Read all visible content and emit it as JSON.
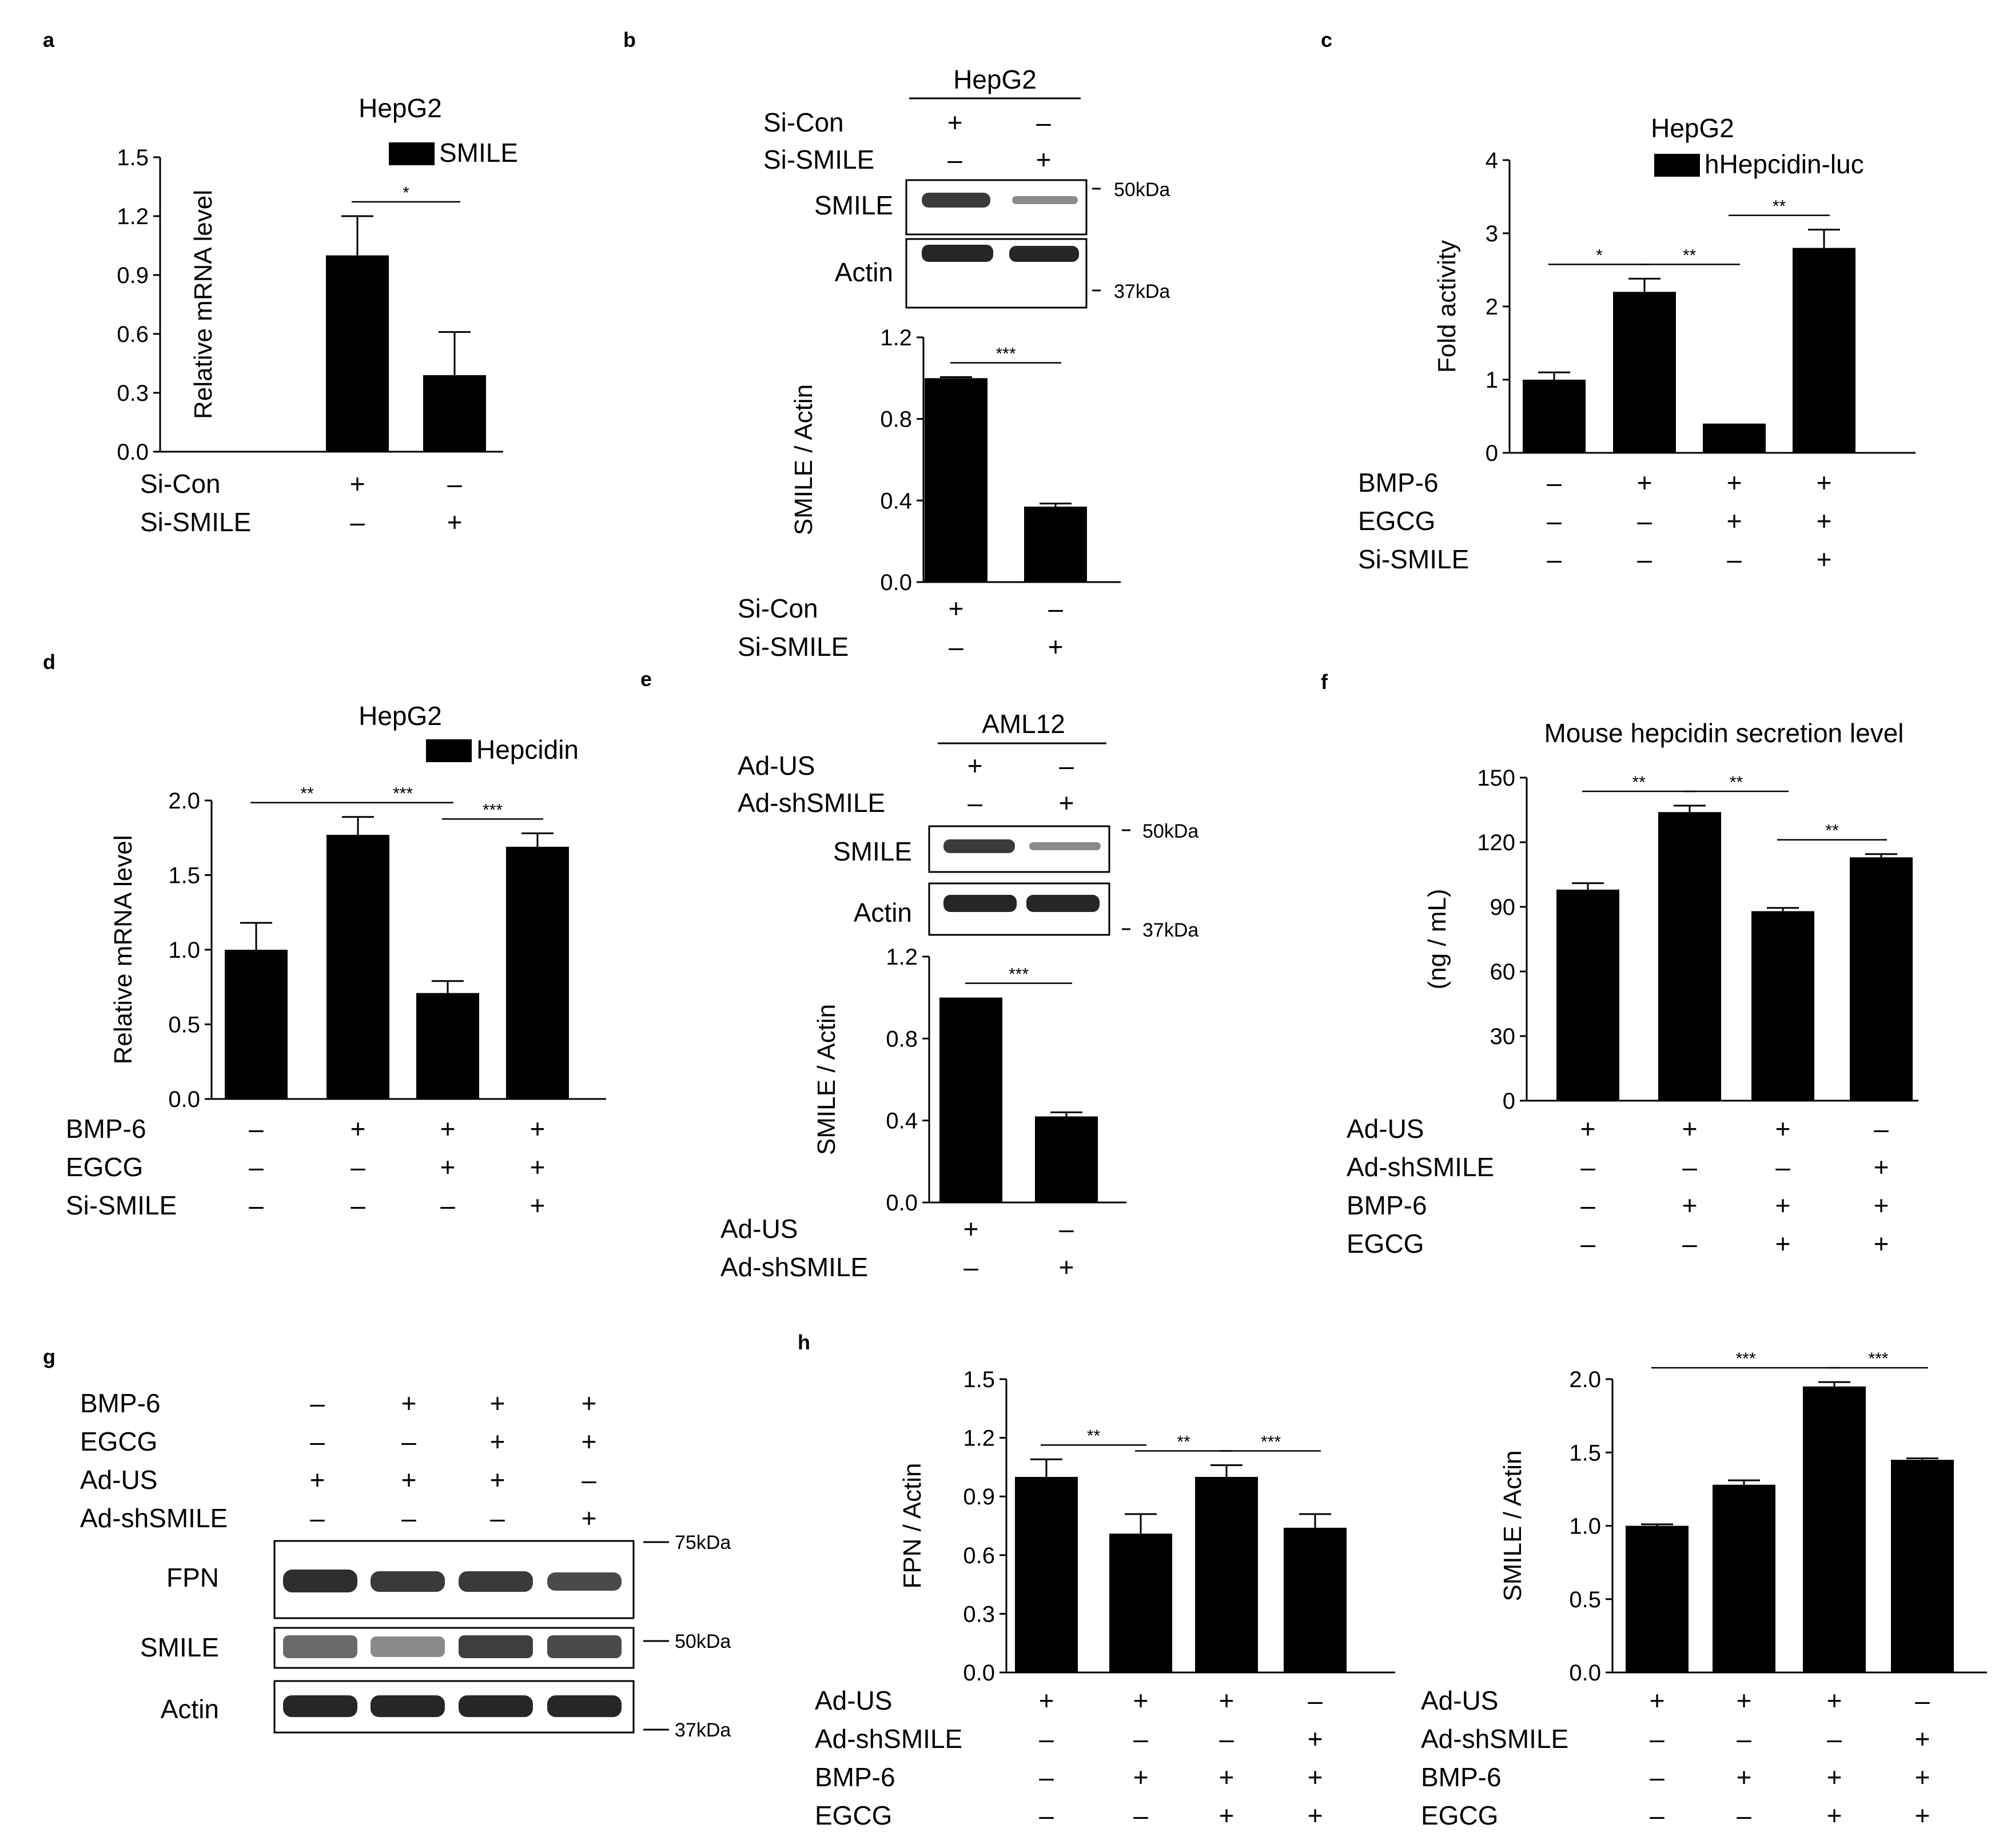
{
  "panels": [
    {
      "id": "a",
      "letter": "a",
      "title": "HepG2",
      "legend": "SMILE",
      "ylabel": "Relative mRNA level",
      "yticks": [
        "0.0",
        "0.3",
        "0.6",
        "0.9",
        "1.2",
        "1.5"
      ],
      "ylim": [
        0,
        1.5
      ],
      "rows": [
        {
          "label": "Si-Con",
          "signs": [
            "+",
            "–"
          ]
        },
        {
          "label": "Si-SMILE",
          "signs": [
            "–",
            "+"
          ]
        }
      ],
      "values": [
        1.0,
        0.39
      ],
      "errors": [
        0.2,
        0.22
      ],
      "sig": [
        {
          "from": 0,
          "to": 1,
          "text": "*"
        }
      ]
    },
    {
      "id": "b",
      "letter": "b",
      "title": "HepG2",
      "legend": "",
      "ylabel": "SMILE / Actin",
      "yticks": [
        "0.0",
        "0.4",
        "0.8",
        "1.2"
      ],
      "ylim": [
        0,
        1.2
      ],
      "rows": [
        {
          "label": "Si-Con",
          "signs": [
            "+",
            "–"
          ]
        },
        {
          "label": "Si-SMILE",
          "signs": [
            "–",
            "+"
          ]
        }
      ],
      "values": [
        1.0,
        0.37
      ],
      "errors": [
        0.005,
        0.015
      ],
      "sig": [
        {
          "from": 0,
          "to": 1,
          "text": "***"
        }
      ]
    },
    {
      "id": "c",
      "letter": "c",
      "title": "HepG2",
      "legend": "hHepcidin-luc",
      "ylabel": "Fold activity",
      "yticks": [
        "0",
        "1",
        "2",
        "3",
        "4"
      ],
      "ylim": [
        0,
        4
      ],
      "rows": [
        {
          "label": "BMP-6",
          "signs": [
            "–",
            "+",
            "+",
            "+"
          ]
        },
        {
          "label": "EGCG",
          "signs": [
            "–",
            "–",
            "+",
            "+"
          ]
        },
        {
          "label": "Si-SMILE",
          "signs": [
            "–",
            "–",
            "–",
            "+"
          ]
        }
      ],
      "values": [
        1.0,
        2.2,
        0.4,
        2.8
      ],
      "errors": [
        0.1,
        0.18,
        0.0,
        0.25
      ],
      "sig": [
        {
          "from": 0,
          "to": 1,
          "text": "*"
        },
        {
          "from": 1,
          "to": 2,
          "text": "**"
        },
        {
          "from": 2,
          "to": 3,
          "text": "**"
        }
      ]
    },
    {
      "id": "d",
      "letter": "d",
      "title": "HepG2",
      "legend": "Hepcidin",
      "ylabel": "Relative mRNA level",
      "yticks": [
        "0.0",
        "0.5",
        "1.0",
        "1.5",
        "2.0"
      ],
      "ylim": [
        0,
        2
      ],
      "rows": [
        {
          "label": "BMP-6",
          "signs": [
            "–",
            "+",
            "+",
            "+"
          ]
        },
        {
          "label": "EGCG",
          "signs": [
            "–",
            "–",
            "+",
            "+"
          ]
        },
        {
          "label": "Si-SMILE",
          "signs": [
            "–",
            "–",
            "–",
            "+"
          ]
        }
      ],
      "values": [
        1.0,
        1.77,
        0.71,
        1.69
      ],
      "errors": [
        0.18,
        0.12,
        0.08,
        0.09
      ],
      "sig": [
        {
          "from": 0,
          "to": 1,
          "text": "**"
        },
        {
          "from": 1,
          "to": 2,
          "text": "***"
        },
        {
          "from": 2,
          "to": 3,
          "text": "***"
        }
      ]
    },
    {
      "id": "e",
      "letter": "e",
      "title": "AML12",
      "legend": "",
      "ylabel": "SMILE / Actin",
      "yticks": [
        "0.0",
        "0.4",
        "0.8",
        "1.2"
      ],
      "ylim": [
        0,
        1.2
      ],
      "rows": [
        {
          "label": "Ad-US",
          "signs": [
            "+",
            "–"
          ]
        },
        {
          "label": "Ad-shSMILE",
          "signs": [
            "–",
            "+"
          ]
        }
      ],
      "values": [
        1.0,
        0.42
      ],
      "errors": [
        0.0,
        0.02
      ],
      "sig": [
        {
          "from": 0,
          "to": 1,
          "text": "***"
        }
      ]
    },
    {
      "id": "f",
      "letter": "f",
      "title": "Mouse hepcidin secretion level",
      "legend": "",
      "ylabel": "(ng / mL)",
      "yticks": [
        "0",
        "30",
        "60",
        "90",
        "120",
        "150"
      ],
      "ylim": [
        0,
        150
      ],
      "rows": [
        {
          "label": "Ad-US",
          "signs": [
            "+",
            "+",
            "+",
            "–"
          ]
        },
        {
          "label": "Ad-shSMILE",
          "signs": [
            "–",
            "–",
            "–",
            "+"
          ]
        },
        {
          "label": "BMP-6",
          "signs": [
            "–",
            "+",
            "+",
            "+"
          ]
        },
        {
          "label": "EGCG",
          "signs": [
            "–",
            "–",
            "+",
            "+"
          ]
        }
      ],
      "values": [
        98,
        134,
        88,
        113
      ],
      "errors": [
        3,
        3,
        1.5,
        1.5
      ],
      "sig": [
        {
          "from": 0,
          "to": 1,
          "text": "**"
        },
        {
          "from": 1,
          "to": 2,
          "text": "**"
        },
        {
          "from": 2,
          "to": 3,
          "text": "**"
        }
      ]
    },
    {
      "id": "h1",
      "letter": "h",
      "title": "",
      "legend": "",
      "ylabel": "FPN / Actin",
      "yticks": [
        "0.0",
        "0.3",
        "0.6",
        "0.9",
        "1.2",
        "1.5"
      ],
      "ylim": [
        0,
        1.5
      ],
      "rows": [
        {
          "label": "Ad-US",
          "signs": [
            "+",
            "+",
            "+",
            "–"
          ]
        },
        {
          "label": "Ad-shSMILE",
          "signs": [
            "–",
            "–",
            "–",
            "+"
          ]
        },
        {
          "label": "BMP-6",
          "signs": [
            "–",
            "+",
            "+",
            "+"
          ]
        },
        {
          "label": "EGCG",
          "signs": [
            "–",
            "–",
            "+",
            "+"
          ]
        }
      ],
      "values": [
        1.0,
        0.71,
        1.0,
        0.74
      ],
      "errors": [
        0.09,
        0.1,
        0.06,
        0.07
      ],
      "sig": [
        {
          "from": 0,
          "to": 1,
          "text": "**"
        },
        {
          "from": 1,
          "to": 2,
          "text": "**"
        },
        {
          "from": 2,
          "to": 3,
          "text": "***"
        }
      ]
    },
    {
      "id": "h2",
      "letter": "",
      "title": "",
      "legend": "",
      "ylabel": "SMILE / Actin",
      "yticks": [
        "0.0",
        "0.5",
        "1.0",
        "1.5",
        "2.0"
      ],
      "ylim": [
        0,
        2
      ],
      "rows": [
        {
          "label": "Ad-US",
          "signs": [
            "+",
            "+",
            "+",
            "–"
          ]
        },
        {
          "label": "Ad-shSMILE",
          "signs": [
            "–",
            "–",
            "–",
            "+"
          ]
        },
        {
          "label": "BMP-6",
          "signs": [
            "–",
            "+",
            "+",
            "+"
          ]
        },
        {
          "label": "EGCG",
          "signs": [
            "–",
            "–",
            "+",
            "+"
          ]
        }
      ],
      "values": [
        1.0,
        1.28,
        1.95,
        1.45
      ],
      "errors": [
        0.01,
        0.03,
        0.03,
        0.01
      ],
      "sig": [
        {
          "from": 0,
          "to": 2,
          "text": "***"
        },
        {
          "from": 2,
          "to": 3,
          "text": "***"
        }
      ]
    }
  ],
  "blots": {
    "b": {
      "bands": [
        "SMILE",
        "Actin"
      ],
      "markers": [
        "50kDa",
        "37kDa"
      ]
    },
    "e": {
      "bands": [
        "SMILE",
        "Actin"
      ],
      "markers": [
        "50kDa",
        "37kDa"
      ]
    },
    "g": {
      "letter": "g",
      "bands": [
        "FPN",
        "SMILE",
        "Actin"
      ],
      "markers": [
        "75kDa",
        "50kDa",
        "37kDa"
      ],
      "rows": [
        {
          "label": "BMP-6",
          "signs": [
            "–",
            "+",
            "+",
            "+"
          ]
        },
        {
          "label": "EGCG",
          "signs": [
            "–",
            "–",
            "+",
            "+"
          ]
        },
        {
          "label": "Ad-US",
          "signs": [
            "+",
            "+",
            "+",
            "–"
          ]
        },
        {
          "label": "Ad-shSMILE",
          "signs": [
            "–",
            "–",
            "–",
            "+"
          ]
        }
      ]
    }
  },
  "chart_data": [
    {
      "type": "bar",
      "panel": "a",
      "title": "HepG2",
      "ylabel": "Relative mRNA level",
      "categories": [
        "Si-Con",
        "Si-SMILE"
      ],
      "series": [
        {
          "name": "SMILE",
          "values": [
            1.0,
            0.39
          ],
          "errors": [
            0.2,
            0.22
          ]
        }
      ],
      "ylim": [
        0,
        1.5
      ]
    },
    {
      "type": "bar",
      "panel": "b",
      "ylabel": "SMILE / Actin",
      "categories": [
        "Si-Con",
        "Si-SMILE"
      ],
      "series": [
        {
          "values": [
            1.0,
            0.37
          ],
          "errors": [
            0.005,
            0.015
          ]
        }
      ],
      "ylim": [
        0,
        1.2
      ]
    },
    {
      "type": "bar",
      "panel": "c",
      "title": "HepG2",
      "ylabel": "Fold activity",
      "categories": [
        "1",
        "2",
        "3",
        "4"
      ],
      "series": [
        {
          "name": "hHepcidin-luc",
          "values": [
            1.0,
            2.2,
            0.4,
            2.8
          ],
          "errors": [
            0.1,
            0.18,
            0.0,
            0.25
          ]
        }
      ],
      "ylim": [
        0,
        4
      ]
    },
    {
      "type": "bar",
      "panel": "d",
      "title": "HepG2",
      "ylabel": "Relative mRNA level",
      "categories": [
        "1",
        "2",
        "3",
        "4"
      ],
      "series": [
        {
          "name": "Hepcidin",
          "values": [
            1.0,
            1.77,
            0.71,
            1.69
          ],
          "errors": [
            0.18,
            0.12,
            0.08,
            0.09
          ]
        }
      ],
      "ylim": [
        0,
        2
      ]
    },
    {
      "type": "bar",
      "panel": "e",
      "ylabel": "SMILE / Actin",
      "categories": [
        "Ad-US",
        "Ad-shSMILE"
      ],
      "series": [
        {
          "values": [
            1.0,
            0.42
          ],
          "errors": [
            0.0,
            0.02
          ]
        }
      ],
      "ylim": [
        0,
        1.2
      ]
    },
    {
      "type": "bar",
      "panel": "f",
      "title": "Mouse hepcidin secretion level",
      "ylabel": "(ng / mL)",
      "categories": [
        "1",
        "2",
        "3",
        "4"
      ],
      "series": [
        {
          "values": [
            98,
            134,
            88,
            113
          ],
          "errors": [
            3,
            3,
            1.5,
            1.5
          ]
        }
      ],
      "ylim": [
        0,
        150
      ]
    },
    {
      "type": "bar",
      "panel": "h",
      "ylabel": "FPN / Actin",
      "categories": [
        "1",
        "2",
        "3",
        "4"
      ],
      "series": [
        {
          "values": [
            1.0,
            0.71,
            1.0,
            0.74
          ],
          "errors": [
            0.09,
            0.1,
            0.06,
            0.07
          ]
        }
      ],
      "ylim": [
        0,
        1.5
      ]
    },
    {
      "type": "bar",
      "panel": "h",
      "ylabel": "SMILE / Actin",
      "categories": [
        "1",
        "2",
        "3",
        "4"
      ],
      "series": [
        {
          "values": [
            1.0,
            1.28,
            1.95,
            1.45
          ],
          "errors": [
            0.01,
            0.03,
            0.03,
            0.01
          ]
        }
      ],
      "ylim": [
        0,
        2
      ]
    }
  ]
}
